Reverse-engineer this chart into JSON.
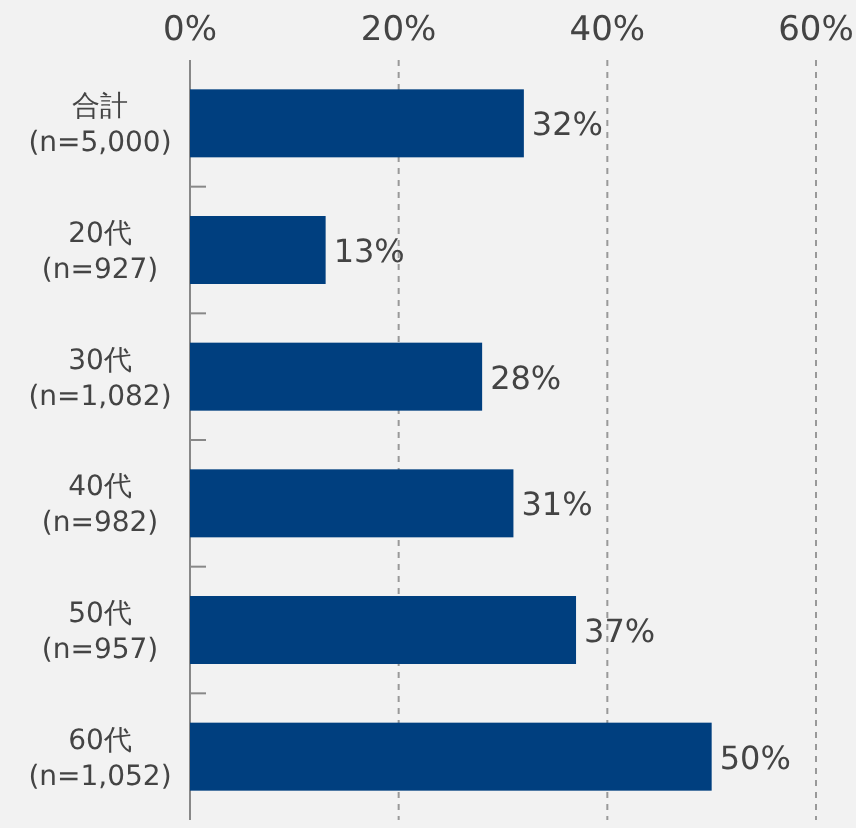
{
  "chart_data": {
    "type": "bar",
    "orientation": "horizontal",
    "categories": [
      "合計\n(n=5,000)",
      "20代\n(n=927)",
      "30代\n(n=1,082)",
      "40代\n(n=982)",
      "50代\n(n=957)",
      "60代\n(n=1,052)"
    ],
    "values": [
      32,
      13,
      28,
      31,
      37,
      50
    ],
    "value_labels": [
      "32%",
      "13%",
      "28%",
      "31%",
      "37%",
      "50%"
    ],
    "color": "#003f7f",
    "xlim": [
      0,
      60
    ],
    "xticks": [
      {
        "value": 0,
        "label": "0%"
      },
      {
        "value": 20,
        "label": "20%"
      },
      {
        "value": 40,
        "label": "40%"
      },
      {
        "value": 60,
        "label": "60%"
      }
    ],
    "grid": "x"
  }
}
